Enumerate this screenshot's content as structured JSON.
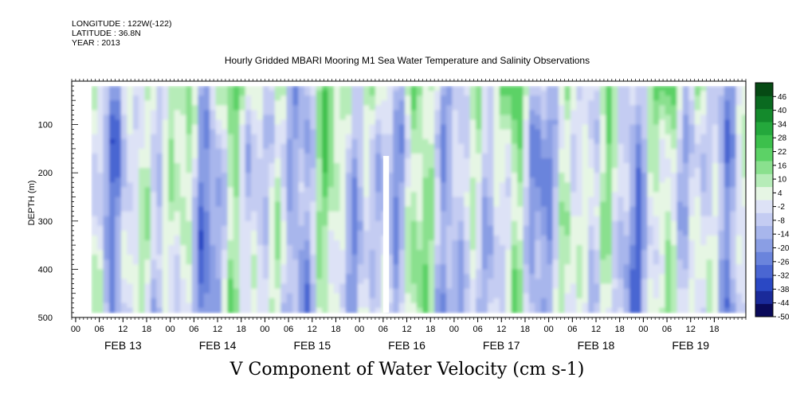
{
  "header": {
    "longitude": "LONGITUDE : 122W(-122)",
    "latitude": "LATITUDE : 36.8N",
    "year": "YEAR : 2013"
  },
  "chart_data": {
    "type": "heatmap",
    "title": "Hourly Gridded MBARI Mooring M1 Sea Water Temperature and Salinity Observations",
    "xlabel": "V Component of Water Velocity (cm s-1)",
    "ylabel": "DEPTH (m)",
    "x_hour_ticks": [
      "00",
      "06",
      "12",
      "18",
      "00",
      "06",
      "12",
      "18",
      "00",
      "06",
      "12",
      "18",
      "00",
      "06",
      "12",
      "18",
      "00",
      "06",
      "12",
      "18",
      "00",
      "06",
      "12",
      "18",
      "00",
      "06",
      "12",
      "18"
    ],
    "x_day_labels": [
      "FEB 13",
      "FEB 14",
      "FEB 15",
      "FEB 16",
      "FEB 17",
      "FEB 18",
      "FEB 19"
    ],
    "y_ticks": [
      100,
      200,
      300,
      400,
      500
    ],
    "ylim": [
      500,
      10
    ],
    "xlim_hours_from_feb13_00": [
      -1,
      170
    ],
    "data_start_hour": 4,
    "data_end_hour": 170,
    "colorbar_levels": [
      46,
      40,
      34,
      28,
      22,
      16,
      10,
      4,
      -2,
      -8,
      -14,
      -20,
      -26,
      -32,
      -38,
      -44,
      -50
    ],
    "colorbar_range": [
      -50,
      52
    ],
    "colorbar_colors": [
      "#0a0a5a",
      "#1a2a9a",
      "#2a48c4",
      "#4a66d2",
      "#6a84dc",
      "#8a9ee4",
      "#a8b6ec",
      "#c4ccf2",
      "#dde2f6",
      "#e6f6e4",
      "#b6ecb8",
      "#8ae08e",
      "#5cd266",
      "#3cc04c",
      "#24a83c",
      "#148a2c",
      "#0a6a20",
      "#064a14"
    ],
    "missing_data": [
      {
        "hour_start": 78,
        "hour_end": 79.5,
        "depth_top": 165,
        "depth_bottom": 490
      }
    ],
    "x_unit": "hours since FEB 13 00:00",
    "y_unit": "m"
  }
}
